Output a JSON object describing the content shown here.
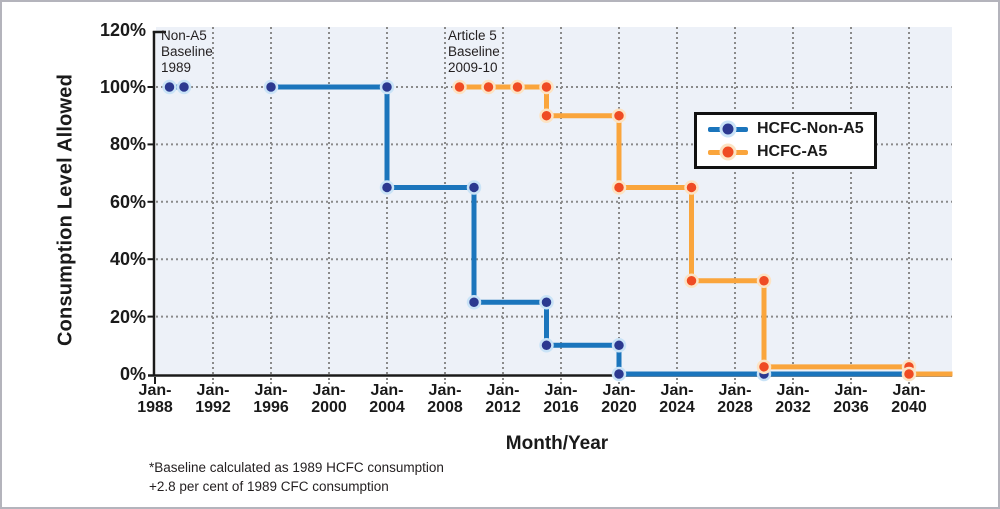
{
  "chart_data": {
    "type": "step-line",
    "title": "",
    "xlabel": "Month/Year",
    "ylabel": "Consumption Level Allowed",
    "x_range_years": [
      1988,
      2043
    ],
    "ylim": [
      0,
      120
    ],
    "x_ticks": [
      {
        "line1": "Jan-",
        "line2": "1988"
      },
      {
        "line1": "Jan-",
        "line2": "1992"
      },
      {
        "line1": "Jan-",
        "line2": "1996"
      },
      {
        "line1": "Jan-",
        "line2": "2000"
      },
      {
        "line1": "Jan-",
        "line2": "2004"
      },
      {
        "line1": "Jan-",
        "line2": "2008"
      },
      {
        "line1": "Jan-",
        "line2": "2012"
      },
      {
        "line1": "Jan-",
        "line2": "2016"
      },
      {
        "line1": "Jan-",
        "line2": "2020"
      },
      {
        "line1": "Jan-",
        "line2": "2024"
      },
      {
        "line1": "Jan-",
        "line2": "2028"
      },
      {
        "line1": "Jan-",
        "line2": "2032"
      },
      {
        "line1": "Jan-",
        "line2": "2036"
      },
      {
        "line1": "Jan-",
        "line2": "2040"
      }
    ],
    "y_ticks": [
      "0%",
      "20%",
      "40%",
      "60%",
      "80%",
      "100%",
      "120%"
    ],
    "y_tick_values": [
      0,
      20,
      40,
      60,
      80,
      100,
      120
    ],
    "grid": {
      "show": true,
      "color": "#8a8a8a",
      "style": "dotted"
    },
    "plot_bg": "#edf1f8",
    "axis_color": "#1a1a1a",
    "legend_position": "upper-right-inside",
    "annotations": [
      {
        "lines": [
          "Non-A5",
          "Baseline",
          "1989"
        ]
      },
      {
        "lines": [
          "Article 5",
          "Baseline",
          "2009-10"
        ]
      }
    ],
    "series": [
      {
        "name": "HCFC-Non-A5",
        "line_color": "#1b75bc",
        "marker_color": "#2b3990",
        "marker_halo": "#c9e3f7",
        "segments": [
          [
            [
              1989,
              100
            ],
            [
              1990,
              100
            ]
          ],
          [
            [
              1996,
              100
            ],
            [
              2004,
              100
            ],
            [
              2004,
              65
            ],
            [
              2010,
              65
            ],
            [
              2010,
              25
            ],
            [
              2015,
              25
            ],
            [
              2015,
              10
            ],
            [
              2020,
              10
            ],
            [
              2020,
              0
            ],
            [
              2040,
              0
            ]
          ]
        ],
        "markers": [
          [
            1989,
            100
          ],
          [
            1990,
            100
          ],
          [
            1996,
            100
          ],
          [
            2004,
            100
          ],
          [
            2004,
            65
          ],
          [
            2010,
            65
          ],
          [
            2010,
            25
          ],
          [
            2015,
            25
          ],
          [
            2015,
            10
          ],
          [
            2020,
            10
          ],
          [
            2020,
            0
          ],
          [
            2030,
            0
          ],
          [
            2040,
            0
          ]
        ]
      },
      {
        "name": "HCFC-A5",
        "line_color": "#faa53c",
        "marker_color": "#ef4b23",
        "marker_halo": "#fce3c3",
        "segments": [
          [
            [
              2009,
              100
            ],
            [
              2011,
              100
            ],
            [
              2013,
              100
            ],
            [
              2015,
              100
            ],
            [
              2015,
              90
            ],
            [
              2020,
              90
            ],
            [
              2020,
              65
            ],
            [
              2025,
              65
            ],
            [
              2025,
              32.5
            ],
            [
              2030,
              32.5
            ],
            [
              2030,
              2.5
            ],
            [
              2040,
              2.5
            ],
            [
              2040,
              0
            ],
            [
              2043,
              0
            ]
          ]
        ],
        "markers": [
          [
            2009,
            100
          ],
          [
            2011,
            100
          ],
          [
            2013,
            100
          ],
          [
            2015,
            100
          ],
          [
            2015,
            90
          ],
          [
            2020,
            90
          ],
          [
            2020,
            65
          ],
          [
            2025,
            65
          ],
          [
            2025,
            32.5
          ],
          [
            2030,
            32.5
          ],
          [
            2030,
            2.5
          ],
          [
            2040,
            2.5
          ],
          [
            2040,
            0
          ]
        ]
      }
    ],
    "footnote": {
      "line1": "*Baseline calculated as 1989 HCFC consumption",
      "line2": "+2.8 per cent of 1989 CFC consumption"
    }
  }
}
